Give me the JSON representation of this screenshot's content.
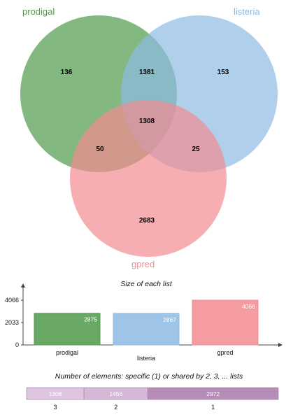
{
  "venn": {
    "sets": [
      {
        "name": "prodigal",
        "color": "#4f9a4a"
      },
      {
        "name": "listeria",
        "color": "#8dbbe3"
      },
      {
        "name": "gpred",
        "color": "#f28b91"
      }
    ],
    "regions": {
      "prodigal_only": "136",
      "prodigal_listeria": "1381",
      "listeria_only": "153",
      "all_three": "1308",
      "prodigal_gpred": "50",
      "listeria_gpred": "25",
      "gpred_only": "2683"
    }
  },
  "chart_data": [
    {
      "type": "bar",
      "title": "Size of each list",
      "categories": [
        "prodigal",
        "listeria",
        "gpred"
      ],
      "values": [
        2875,
        2867,
        4066
      ],
      "yticks": [
        0,
        2033,
        4066
      ],
      "ylim": [
        0,
        4066
      ],
      "colors": [
        "#4f9a4a",
        "#8dbbe3",
        "#f28b91"
      ]
    },
    {
      "type": "bar",
      "title": "Number of elements: specific (1) or shared by 2, 3, ... lists",
      "categories": [
        "3",
        "2",
        "1"
      ],
      "values": [
        1308,
        1456,
        2972
      ],
      "orientation": "horizontal-stacked",
      "colors": [
        "#ddc6de",
        "#d4b8d6",
        "#b58db7"
      ]
    }
  ]
}
